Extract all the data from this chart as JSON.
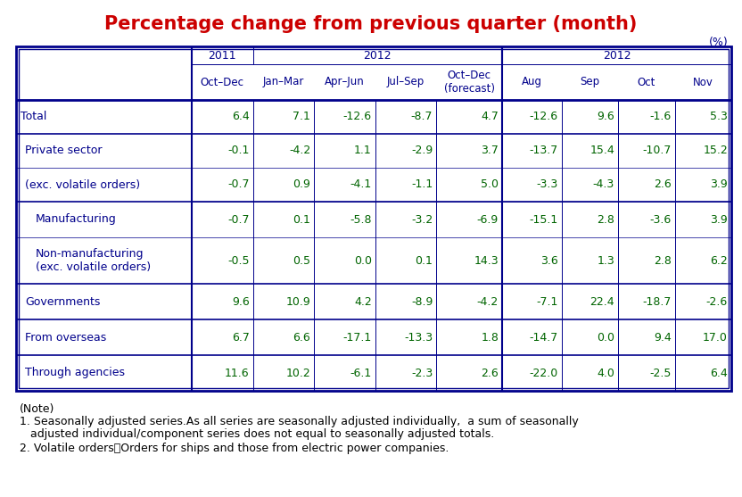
{
  "title": "Percentage change from previous quarter (month)",
  "title_color": "#CC0000",
  "unit_label": "(%)",
  "col_headers": [
    [
      "2011\nOct-Dec",
      "2012\nJan-Mar",
      "Apr-Jun",
      "Jul-Sep",
      "Oct-Dec\n(forecast)",
      "2012\nAug",
      "Sep",
      "Oct",
      "Nov"
    ],
    [
      "2011\nOct–Dec",
      "2012\nJan–Mar",
      "Apr–Jun",
      "Jul–Sep",
      "Oct–Dec\n(forecast)",
      "2012\nAug",
      "Sep",
      "Oct",
      "Nov"
    ]
  ],
  "col_headers_display": [
    "2011\nOct-Dec",
    "2012\nJan-Mar",
    "Apr-Jun",
    "Jul-Sep",
    "Oct-Dec\n(forecast)",
    "2012\nAug",
    "Sep",
    "Oct",
    "Nov"
  ],
  "col_header_extra": [
    "",
    "",
    "",
    "",
    "",
    "2012",
    "",
    "",
    ""
  ],
  "rows": [
    {
      "label": "Total",
      "indent": 0,
      "values": [
        "6.4",
        "7.1",
        "-12.6",
        "-8.7",
        "4.7",
        "-12.6",
        "9.6",
        "-1.6",
        "5.3"
      ],
      "bold": false,
      "separator_above": true
    },
    {
      "label": "Private sector",
      "indent": 1,
      "values": [
        "-0.1",
        "-4.2",
        "1.1",
        "-2.9",
        "3.7",
        "-13.7",
        "15.4",
        "-10.7",
        "15.2"
      ],
      "bold": false,
      "separator_above": true
    },
    {
      "label": "(exc. volatile orders)",
      "indent": 1,
      "values": [
        "-0.7",
        "0.9",
        "-4.1",
        "-1.1",
        "5.0",
        "-3.3",
        "-4.3",
        "2.6",
        "3.9"
      ],
      "bold": false,
      "separator_above": false
    },
    {
      "label": "Manufacturing",
      "indent": 2,
      "values": [
        "-0.7",
        "0.1",
        "-5.8",
        "-3.2",
        "-6.9",
        "-15.1",
        "2.8",
        "-3.6",
        "3.9"
      ],
      "bold": false,
      "separator_above": true
    },
    {
      "label": "Non-manufacturing\n(exc. volatile orders)",
      "indent": 2,
      "values": [
        "-0.5",
        "0.5",
        "0.0",
        "0.1",
        "14.3",
        "3.6",
        "1.3",
        "2.8",
        "6.2"
      ],
      "bold": false,
      "separator_above": false
    },
    {
      "label": "Governments",
      "indent": 1,
      "values": [
        "9.6",
        "10.9",
        "4.2",
        "-8.9",
        "-4.2",
        "-7.1",
        "22.4",
        "-18.7",
        "-2.6"
      ],
      "bold": false,
      "separator_above": true
    },
    {
      "label": "From overseas",
      "indent": 1,
      "values": [
        "6.7",
        "6.6",
        "-17.1",
        "-13.3",
        "1.8",
        "-14.7",
        "0.0",
        "9.4",
        "17.0"
      ],
      "bold": false,
      "separator_above": true
    },
    {
      "label": "Through agencies",
      "indent": 1,
      "values": [
        "11.6",
        "10.2",
        "-6.1",
        "-2.3",
        "2.6",
        "-22.0",
        "4.0",
        "-2.5",
        "6.4"
      ],
      "bold": false,
      "separator_above": true
    }
  ],
  "notes": [
    "(Note)",
    "1. Seasonally adjusted series.As all series are seasonally adjusted individually,  a sum of seasonally",
    "   adjusted individual/component series does not equal to seasonally adjusted totals.",
    "2. Volatile orders：Orders for ships and those from electric power companies."
  ],
  "table_border_color": "#00008B",
  "header_text_color": "#00008B",
  "row_label_color": "#00008B",
  "value_color": "#006400",
  "note_color": "#000000",
  "bg_color": "#FFFFFF",
  "col_separator_after": 4
}
